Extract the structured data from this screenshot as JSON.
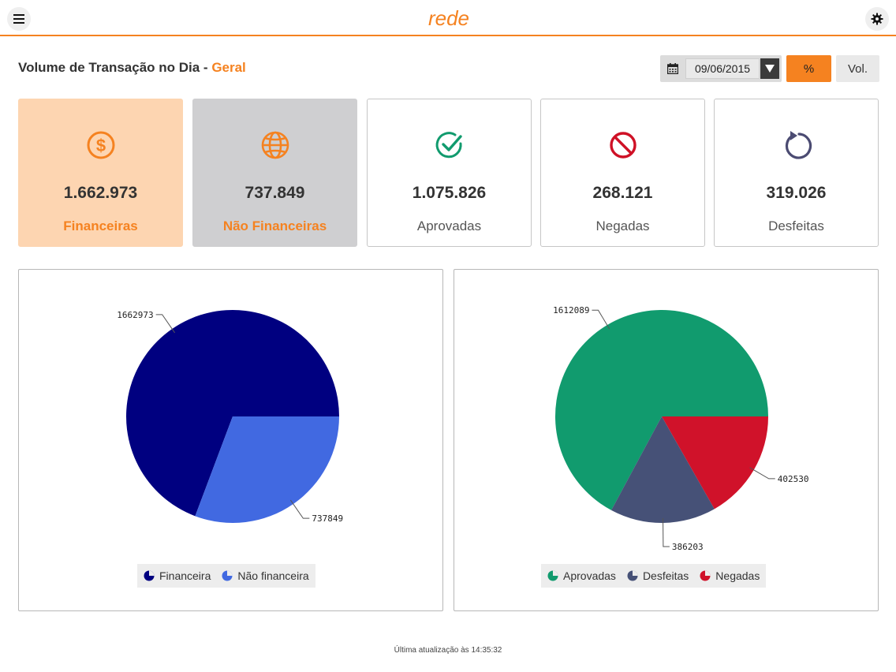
{
  "header": {
    "menu_icon": "hamburger-menu-icon",
    "settings_icon": "gear-icon",
    "logo_text": "rede",
    "accent_color": "#f58220"
  },
  "title": {
    "prefix": "Volume de Transação no Dia - ",
    "scope": "Geral"
  },
  "date_picker": {
    "icon": "calendar-icon",
    "value": "09/06/2015"
  },
  "toggles": {
    "percent_label": "%",
    "volume_label": "Vol.",
    "active": "percent"
  },
  "cards": [
    {
      "id": "financeiras",
      "icon": "dollar-circle-icon",
      "value": "1.662.973",
      "label": "Financeiras",
      "icon_color": "#f58220"
    },
    {
      "id": "nao-financeiras",
      "icon": "globe-icon",
      "value": "737.849",
      "label": "Não Financeiras",
      "icon_color": "#f58220"
    },
    {
      "id": "aprovadas",
      "icon": "check-circle-icon",
      "value": "1.075.826",
      "label": "Aprovadas",
      "icon_color": "#119b6e"
    },
    {
      "id": "negadas",
      "icon": "prohibited-icon",
      "value": "268.121",
      "label": "Negadas",
      "icon_color": "#cf1126"
    },
    {
      "id": "desfeitas",
      "icon": "undo-arrow-icon",
      "value": "319.026",
      "label": "Desfeitas",
      "icon_color": "#4b4b72"
    }
  ],
  "chart_data": [
    {
      "type": "pie",
      "slices": [
        {
          "name": "Financeira",
          "value": 1662973,
          "label": "1662973",
          "color": "#000080"
        },
        {
          "name": "Não financeira",
          "value": 737849,
          "label": "737849",
          "color": "#4169e1"
        }
      ],
      "legend_position": "bottom"
    },
    {
      "type": "pie",
      "slices": [
        {
          "name": "Aprovadas",
          "value": 1612089,
          "label": "1612089",
          "color": "#119b6e"
        },
        {
          "name": "Desfeitas",
          "value": 386203,
          "label": "386203",
          "color": "#465177"
        },
        {
          "name": "Negadas",
          "value": 402530,
          "label": "402530",
          "color": "#d0122a"
        }
      ],
      "legend_position": "bottom"
    }
  ],
  "footer": {
    "last_update": "Última atualização às 14:35:32"
  }
}
